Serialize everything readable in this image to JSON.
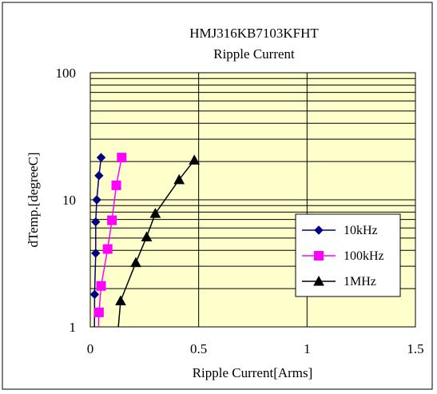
{
  "chart_data": {
    "type": "line",
    "title": "HMJ316KB7103KFHT",
    "subtitle": "Ripple Current",
    "xlabel": "Ripple Current[Arms]",
    "ylabel": "dTemp.[degreeC]",
    "xlim": [
      0,
      1.5
    ],
    "ylim": [
      1,
      100
    ],
    "yscale": "log",
    "grid": true,
    "legend_position": "right",
    "plot_background": "#ffffcc",
    "x_ticks": [
      {
        "value": 0,
        "label": "0"
      },
      {
        "value": 0.5,
        "label": "0.5"
      },
      {
        "value": 1,
        "label": "1"
      },
      {
        "value": 1.5,
        "label": "1.5"
      }
    ],
    "y_ticks": [
      {
        "value": 1,
        "label": "1"
      },
      {
        "value": 10,
        "label": "10"
      },
      {
        "value": 100,
        "label": "100"
      }
    ],
    "series": [
      {
        "name": "10kHz",
        "color": "#000080",
        "marker": "diamond",
        "points": [
          {
            "x": 0.02,
            "y": 1.8
          },
          {
            "x": 0.025,
            "y": 3.8
          },
          {
            "x": 0.025,
            "y": 6.7
          },
          {
            "x": 0.03,
            "y": 10
          },
          {
            "x": 0.04,
            "y": 15.5
          },
          {
            "x": 0.05,
            "y": 21.5
          }
        ]
      },
      {
        "name": "100kHz",
        "color": "#ff00ff",
        "marker": "square",
        "points": [
          {
            "x": 0.04,
            "y": 1.3
          },
          {
            "x": 0.05,
            "y": 2.1
          },
          {
            "x": 0.08,
            "y": 4.1
          },
          {
            "x": 0.1,
            "y": 6.9
          },
          {
            "x": 0.12,
            "y": 13
          },
          {
            "x": 0.145,
            "y": 21.5
          }
        ]
      },
      {
        "name": "1MHz",
        "color": "#000000",
        "marker": "triangle",
        "points": [
          {
            "x": 0.14,
            "y": 1.6
          },
          {
            "x": 0.21,
            "y": 3.2
          },
          {
            "x": 0.26,
            "y": 5.1
          },
          {
            "x": 0.3,
            "y": 7.8
          },
          {
            "x": 0.41,
            "y": 14.4
          },
          {
            "x": 0.48,
            "y": 20.5
          }
        ]
      }
    ]
  }
}
